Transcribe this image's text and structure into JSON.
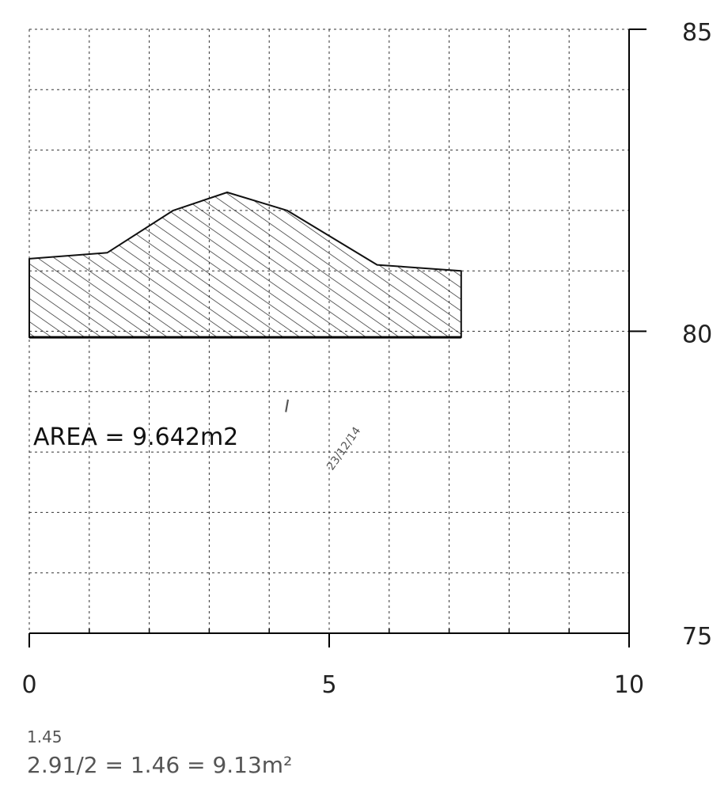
{
  "chart_data": {
    "type": "area",
    "title": "",
    "xlabel": "",
    "ylabel": "",
    "xlim": [
      0,
      10
    ],
    "ylim": [
      75,
      85
    ],
    "grid": true,
    "x_tick_labels": [
      "0",
      "5",
      "10"
    ],
    "y_tick_labels": [
      "85",
      "80",
      "75"
    ],
    "series": [
      {
        "points": [
          {
            "x": 0.0,
            "y": 81.2
          },
          {
            "x": 1.3,
            "y": 81.3
          },
          {
            "x": 2.4,
            "y": 82.0
          },
          {
            "x": 3.3,
            "y": 82.3
          },
          {
            "x": 4.3,
            "y": 82.0
          },
          {
            "x": 5.8,
            "y": 81.1
          },
          {
            "x": 7.2,
            "y": 81.0
          },
          {
            "x": 7.2,
            "y": 79.9
          },
          {
            "x": 0.0,
            "y": 79.9
          }
        ]
      }
    ],
    "annotations": {
      "area_label": "AREA = 9.642m2",
      "handwritten_top": "1.45",
      "handwritten_bottom": "2.91/2 = 1.46 = 9.13m²",
      "handwritten_mark": "I",
      "signature_text": "23/12/14"
    }
  },
  "colors": {
    "line": "#111111",
    "grid": "#333333",
    "hatch": "#222222",
    "handwriting": "#666666"
  }
}
